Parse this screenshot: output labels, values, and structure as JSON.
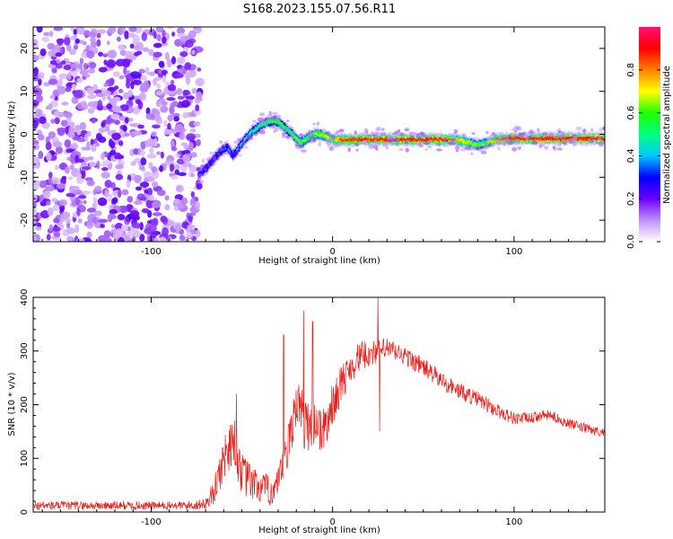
{
  "title": "S168.2023.155.07.56.R11",
  "chart_data": [
    {
      "type": "heatmap",
      "xlabel": "Height of straight line (km)",
      "ylabel": "Frequency (Hz)",
      "xlim": [
        -165,
        150
      ],
      "ylim": [
        -25,
        25
      ],
      "x_ticks": [
        -100,
        0,
        100
      ],
      "x_tick_labels": [
        "-100",
        "0",
        "100"
      ],
      "y_ticks": [
        -20,
        -10,
        0,
        10,
        20
      ],
      "y_tick_labels": [
        "-20",
        "-10",
        "0",
        "10",
        "20"
      ],
      "noise_region_x": [
        -165,
        -75
      ],
      "signal_trace": {
        "x": [
          -74,
          -70,
          -66,
          -62,
          -58,
          -55,
          -50,
          -45,
          -40,
          -35,
          -30,
          -25,
          -22,
          -18,
          -14,
          -10,
          -6,
          -2,
          5,
          20,
          40,
          60,
          70,
          75,
          80,
          85,
          90,
          100,
          120,
          150
        ],
        "y": [
          -9.5,
          -8,
          -6,
          -4,
          -3,
          -5,
          -2,
          0.5,
          2,
          3,
          3,
          1,
          0,
          -2,
          -1,
          0,
          0,
          -1,
          -1.3,
          -1.2,
          -1.2,
          -1.2,
          -1.4,
          -2,
          -2.5,
          -2,
          -1.2,
          -1,
          -1,
          -1
        ],
        "amplitude": [
          0.25,
          0.3,
          0.3,
          0.35,
          0.35,
          0.3,
          0.4,
          0.45,
          0.5,
          0.55,
          0.6,
          0.55,
          0.6,
          0.6,
          0.6,
          0.65,
          0.65,
          0.7,
          0.85,
          0.9,
          0.92,
          0.9,
          0.75,
          0.7,
          0.6,
          0.65,
          0.8,
          0.9,
          0.92,
          0.92
        ]
      },
      "colorbar": {
        "label": "Normalized spectral amplitude",
        "range": [
          0,
          1
        ],
        "ticks": [
          0.0,
          0.2,
          0.4,
          0.6,
          0.8
        ],
        "tick_labels": [
          "0.0",
          "0.2",
          "0.4",
          "0.6",
          "0.8"
        ],
        "colors": [
          "#ffffff",
          "#c08fff",
          "#6a00ff",
          "#0000ff",
          "#00c8ff",
          "#00ff80",
          "#20ff00",
          "#ffff00",
          "#ff8000",
          "#ff0000",
          "#ff1070"
        ]
      }
    },
    {
      "type": "line",
      "xlabel": "Height of straight line (km)",
      "ylabel": "SNR (10 * v/v)",
      "xlim": [
        -165,
        150
      ],
      "ylim": [
        0,
        400
      ],
      "x_ticks": [
        -100,
        0,
        100
      ],
      "x_tick_labels": [
        "-100",
        "0",
        "100"
      ],
      "y_ticks": [
        0,
        100,
        200,
        300,
        400
      ],
      "y_tick_labels": [
        "0",
        "100",
        "200",
        "300",
        "400"
      ],
      "color": "#e8201c",
      "envelope_x": [
        -165,
        -80,
        -70,
        -65,
        -60,
        -55,
        -50,
        -45,
        -40,
        -35,
        -30,
        -25,
        -20,
        -15,
        -10,
        -5,
        0,
        5,
        10,
        15,
        20,
        25,
        30,
        40,
        50,
        60,
        70,
        80,
        90,
        100,
        110,
        115,
        120,
        130,
        140,
        150
      ],
      "envelope_y": [
        12,
        12,
        15,
        40,
        100,
        140,
        70,
        55,
        45,
        40,
        45,
        110,
        210,
        160,
        170,
        150,
        200,
        240,
        270,
        290,
        295,
        300,
        305,
        290,
        270,
        245,
        225,
        210,
        190,
        175,
        175,
        180,
        180,
        165,
        155,
        148
      ],
      "noise_amplitude": [
        8,
        8,
        10,
        25,
        45,
        50,
        40,
        35,
        30,
        30,
        35,
        45,
        50,
        50,
        50,
        45,
        40,
        35,
        30,
        28,
        25,
        22,
        20,
        18,
        18,
        17,
        16,
        15,
        14,
        12,
        10,
        10,
        10,
        9,
        9,
        8
      ],
      "spikes": [
        {
          "x": -53,
          "y": 220
        },
        {
          "x": -27,
          "y": 330
        },
        {
          "x": -16,
          "y": 375
        },
        {
          "x": -11,
          "y": 355
        },
        {
          "x": 25,
          "y": 400
        },
        {
          "x": 26,
          "y": 150
        }
      ]
    }
  ]
}
